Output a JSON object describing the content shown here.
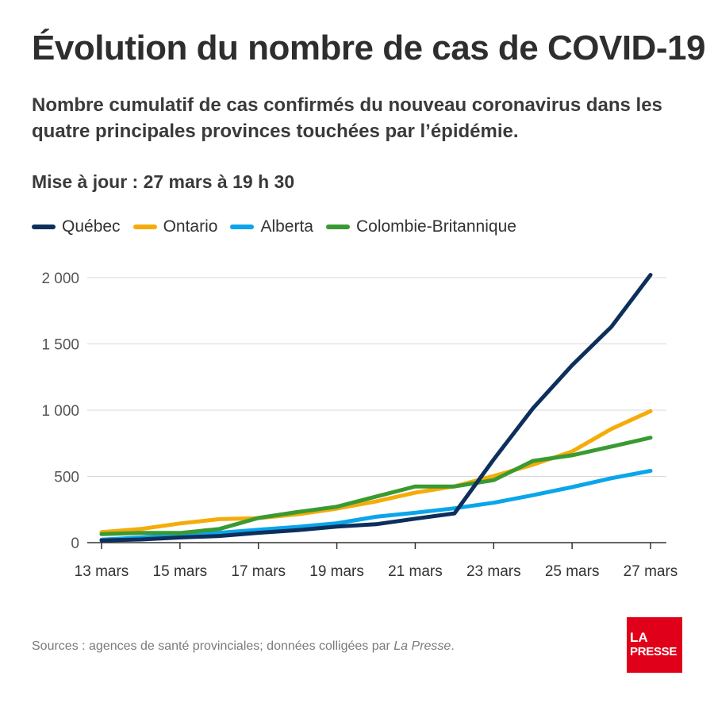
{
  "header": {
    "title": "Évolution du nombre de cas de COVID-19",
    "subtitle": "Nombre cumulatif de cas confirmés du nouveau coronavirus dans les quatre principales provinces touchées par l’épidémie.",
    "update": "Mise à jour : 27 mars à 19 h 30"
  },
  "footer": {
    "source_prefix": "Sources : agences de santé provinciales; données colligées par ",
    "source_italic": "La Presse",
    "source_suffix": "."
  },
  "logo": {
    "line1": "LA",
    "line2": "PRESSE",
    "color": "#e1001a"
  },
  "chart_data": {
    "type": "line",
    "x": [
      "13 mars",
      "14 mars",
      "15 mars",
      "16 mars",
      "17 mars",
      "18 mars",
      "19 mars",
      "20 mars",
      "21 mars",
      "22 mars",
      "23 mars",
      "24 mars",
      "25 mars",
      "26 mars",
      "27 mars"
    ],
    "xticks": [
      "13 mars",
      "15 mars",
      "17 mars",
      "19 mars",
      "21 mars",
      "23 mars",
      "25 mars",
      "27 mars"
    ],
    "yticks": [
      "0",
      "500",
      "1 000",
      "1 500",
      "2 000"
    ],
    "ylim": [
      0,
      2000
    ],
    "grid": true,
    "legend": "top-left",
    "series": [
      {
        "name": "Québec",
        "color": "#0d2f5c",
        "values": [
          17,
          24,
          39,
          50,
          74,
          94,
          121,
          139,
          181,
          221,
          628,
          1013,
          1339,
          1629,
          2021
        ]
      },
      {
        "name": "Ontario",
        "color": "#f5ac0a",
        "values": [
          79,
          103,
          145,
          177,
          185,
          214,
          257,
          311,
          377,
          425,
          503,
          588,
          688,
          858,
          993
        ]
      },
      {
        "name": "Alberta",
        "color": "#0aa5eb",
        "values": [
          23,
          39,
          56,
          74,
          97,
          119,
          146,
          195,
          226,
          259,
          301,
          358,
          419,
          486,
          542
        ]
      },
      {
        "name": "Colombie-Britannique",
        "color": "#3a9a32",
        "values": [
          64,
          73,
          73,
          103,
          186,
          231,
          271,
          348,
          424,
          424,
          472,
          617,
          659,
          725,
          792
        ]
      }
    ]
  }
}
